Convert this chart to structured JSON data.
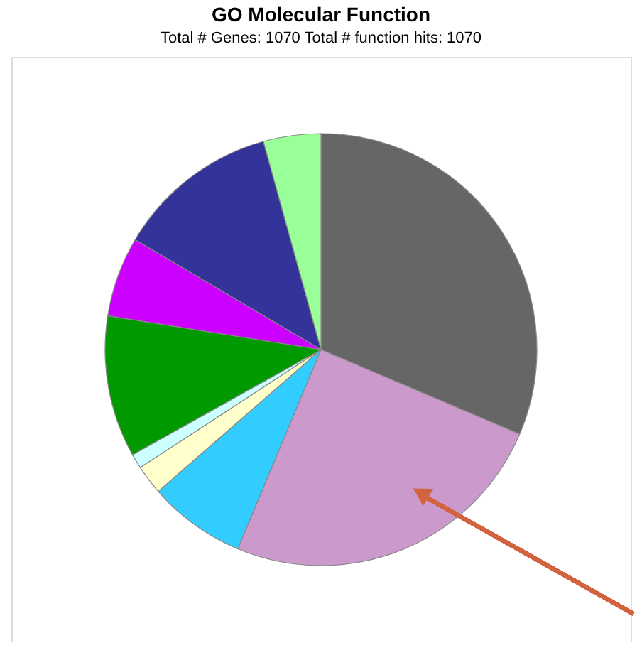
{
  "chart_data": {
    "type": "pie",
    "title": "GO Molecular Function",
    "subtitle": "Total # Genes: 1070    Total # function hits: 1070",
    "categories": [
      null,
      null,
      null,
      null,
      null,
      null,
      null,
      null,
      null
    ],
    "values": [
      31.4,
      24.9,
      7.3,
      2.2,
      1.1,
      10.6,
      6.0,
      12.2,
      4.3
    ],
    "colors": [
      "#666666",
      "#cc99cc",
      "#33ccff",
      "#ffffcc",
      "#ccffff",
      "#009900",
      "#cc00ff",
      "#333399",
      "#99ff99"
    ],
    "legend": false
  }
}
